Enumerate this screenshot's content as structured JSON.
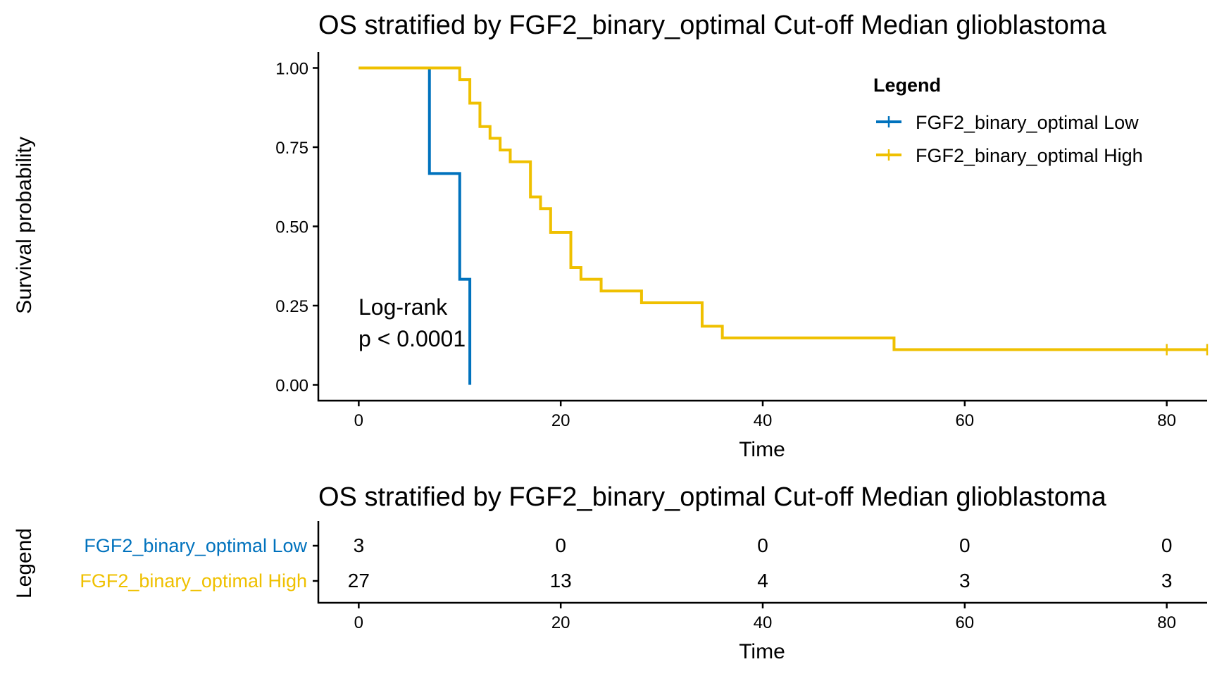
{
  "chart_data": [
    {
      "type": "line",
      "subtype": "kaplan-meier",
      "title": "OS stratified by FGF2_binary_optimal Cut-off Median glioblastoma",
      "xlabel": "Time",
      "ylabel": "Survival probability",
      "xlim": [
        -4,
        84
      ],
      "ylim": [
        -0.05,
        1.05
      ],
      "xticks": [
        0,
        20,
        40,
        60,
        80
      ],
      "yticks": [
        0.0,
        0.25,
        0.5,
        0.75,
        1.0
      ],
      "ytick_labels": [
        "0.00",
        "0.25",
        "0.50",
        "0.75",
        "1.00"
      ],
      "grid": false,
      "legend": {
        "title": "Legend",
        "placement": "top-right"
      },
      "series": [
        {
          "name": "FGF2_binary_optimal Low",
          "color": "#0072BD",
          "steps": [
            {
              "x": 0,
              "y": 1.0
            },
            {
              "x": 7,
              "y": 0.667
            },
            {
              "x": 10,
              "y": 0.333
            },
            {
              "x": 11,
              "y": 0.0
            }
          ],
          "censored": []
        },
        {
          "name": "FGF2_binary_optimal High",
          "color": "#EFC000",
          "steps": [
            {
              "x": 0,
              "y": 1.0
            },
            {
              "x": 10,
              "y": 0.963
            },
            {
              "x": 11,
              "y": 0.889
            },
            {
              "x": 12,
              "y": 0.815
            },
            {
              "x": 13,
              "y": 0.778
            },
            {
              "x": 14,
              "y": 0.741
            },
            {
              "x": 15,
              "y": 0.704
            },
            {
              "x": 17,
              "y": 0.593
            },
            {
              "x": 18,
              "y": 0.556
            },
            {
              "x": 19,
              "y": 0.481
            },
            {
              "x": 21,
              "y": 0.37
            },
            {
              "x": 22,
              "y": 0.333
            },
            {
              "x": 24,
              "y": 0.296
            },
            {
              "x": 28,
              "y": 0.259
            },
            {
              "x": 34,
              "y": 0.185
            },
            {
              "x": 36,
              "y": 0.148
            },
            {
              "x": 53,
              "y": 0.111
            },
            {
              "x": 84,
              "y": 0.111
            }
          ],
          "censored": [
            {
              "x": 80,
              "y": 0.111
            },
            {
              "x": 84,
              "y": 0.111
            }
          ]
        }
      ],
      "annotations": [
        "Log-rank",
        "p < 0.0001"
      ]
    },
    {
      "type": "table",
      "subtype": "risk-table",
      "title": "OS stratified by FGF2_binary_optimal Cut-off Median glioblastoma",
      "xlabel": "Time",
      "ylabel": "Legend",
      "x": [
        0,
        20,
        40,
        60,
        80
      ],
      "xlim": [
        -4,
        84
      ],
      "rows": [
        {
          "name": "FGF2_binary_optimal Low",
          "color": "#0072BD",
          "values": [
            3,
            0,
            0,
            0,
            0
          ]
        },
        {
          "name": "FGF2_binary_optimal High",
          "color": "#EFC000",
          "values": [
            27,
            13,
            4,
            3,
            3
          ]
        }
      ]
    }
  ]
}
